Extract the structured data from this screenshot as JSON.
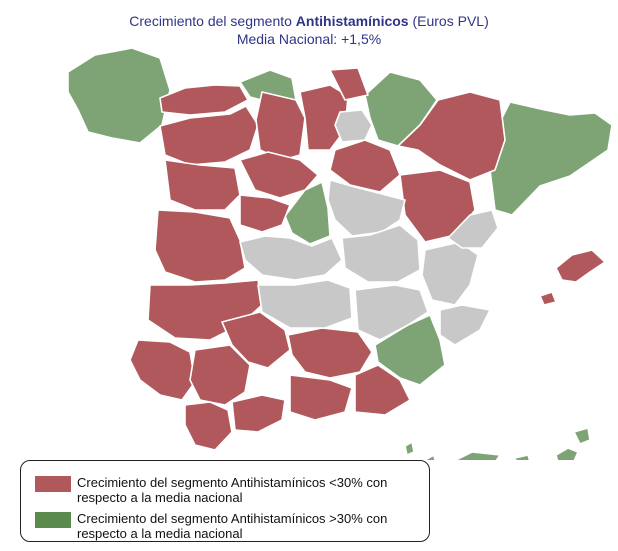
{
  "title": {
    "prefix": "Crecimiento del segmento",
    "bold": "Antihistamínicos",
    "suffix": "(Euros PVL)",
    "line2": "Media Nacional: +1,5%"
  },
  "colors": {
    "below": "#b0585b",
    "above": "#7ea476",
    "neutral": "#c8c8c8",
    "border": "#ffffff",
    "title": "#2f3486",
    "legend_below": "#b0585b",
    "legend_above": "#5a8a4c"
  },
  "legend": {
    "items": [
      {
        "label": "Crecimiento del segmento Antihistamínicos <30% con respecto a la media nacional"
      },
      {
        "label": "Crecimiento del segmento Antihistamínicos >30% con respecto a la media nacional"
      }
    ]
  }
}
